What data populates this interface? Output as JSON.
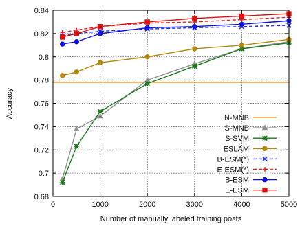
{
  "chart_data": {
    "type": "line",
    "xlabel": "Number of manually labeled training posts",
    "ylabel": "Accuracy",
    "xlim": [
      0,
      5000
    ],
    "ylim": [
      0.68,
      0.84
    ],
    "xticks": [
      0,
      1000,
      2000,
      3000,
      4000,
      5000
    ],
    "xtick_labels": [
      "0",
      "1000",
      "2000",
      "3000",
      "4000",
      "5000"
    ],
    "yticks": [
      0.68,
      0.7,
      0.72,
      0.74,
      0.76,
      0.78,
      0.8,
      0.82,
      0.84
    ],
    "ytick_labels": [
      "0.68",
      "0.7",
      "0.72",
      "0.74",
      "0.76",
      "0.78",
      "0.8",
      "0.82",
      "0.84"
    ],
    "grid": true,
    "legend_position": "bottom-right",
    "x": [
      200,
      500,
      1000,
      2000,
      3000,
      4000,
      5000
    ],
    "series": [
      {
        "name": "N-MNB",
        "color": "#f0a030",
        "marker": "none",
        "dashed": false,
        "values": [
          0.778,
          0.778,
          0.778,
          0.778,
          0.778,
          0.778,
          0.778
        ]
      },
      {
        "name": "S-MNB",
        "color": "#909090",
        "marker": "triangle",
        "dashed": false,
        "values": [
          0.695,
          0.738,
          0.749,
          0.78,
          0.794,
          0.807,
          0.813
        ]
      },
      {
        "name": "S-SVM",
        "color": "#1a7a1a",
        "marker": "star",
        "dashed": false,
        "values": [
          0.692,
          0.723,
          0.753,
          0.777,
          0.792,
          0.807,
          0.812
        ]
      },
      {
        "name": "ESLAM",
        "color": "#b8860b",
        "marker": "circle",
        "dashed": false,
        "values": [
          0.784,
          0.787,
          0.795,
          0.8,
          0.807,
          0.81,
          0.815
        ]
      },
      {
        "name": "B-ESM(*)",
        "color": "#2030e0",
        "marker": "x",
        "dashed": true,
        "values": [
          0.818,
          0.82,
          0.822,
          0.824,
          0.825,
          0.826,
          0.827
        ]
      },
      {
        "name": "E-ESM(*)",
        "color": "#e02020",
        "marker": "plus",
        "dashed": true,
        "values": [
          0.821,
          0.823,
          0.826,
          0.829,
          0.83,
          0.832,
          0.834
        ]
      },
      {
        "name": "B-ESM",
        "color": "#1010e0",
        "marker": "filled-circle",
        "dashed": false,
        "values": [
          0.811,
          0.813,
          0.82,
          0.825,
          0.826,
          0.828,
          0.831
        ]
      },
      {
        "name": "E-ESM",
        "color": "#e01010",
        "marker": "filled-square",
        "dashed": false,
        "values": [
          0.817,
          0.82,
          0.826,
          0.83,
          0.833,
          0.835,
          0.837
        ]
      }
    ]
  }
}
